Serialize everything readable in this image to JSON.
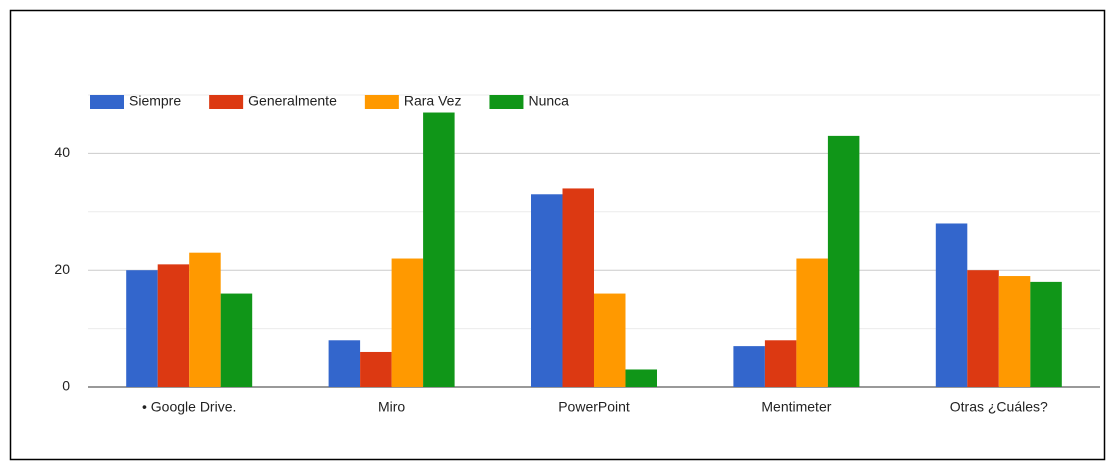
{
  "chart_data": {
    "type": "bar",
    "categories": [
      "• Google Drive.",
      "Miro",
      "PowerPoint",
      "Mentimeter",
      "Otras ¿Cuáles?"
    ],
    "series": [
      {
        "name": "Siempre",
        "color": "#3366cc",
        "values": [
          20,
          8,
          33,
          7,
          28
        ]
      },
      {
        "name": "Generalmente",
        "color": "#dc3912",
        "values": [
          21,
          6,
          34,
          8,
          20
        ]
      },
      {
        "name": "Rara Vez",
        "color": "#ff9900",
        "values": [
          23,
          22,
          16,
          22,
          19
        ]
      },
      {
        "name": "Nunca",
        "color": "#109618",
        "values": [
          16,
          47,
          3,
          43,
          18
        ]
      }
    ],
    "ylim": [
      0,
      50
    ],
    "yticks": [
      0,
      20,
      40
    ],
    "minor_yticks": [
      10,
      30,
      50
    ],
    "grid": true,
    "legend": "top"
  }
}
